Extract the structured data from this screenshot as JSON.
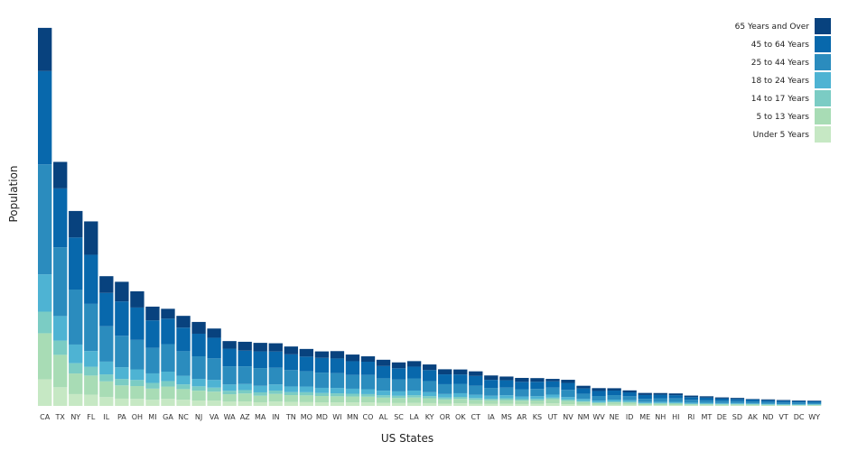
{
  "chart_data": {
    "type": "bar",
    "stacked": true,
    "title": "",
    "xlabel": "US States",
    "ylabel": "Population",
    "ylim": [
      0,
      39500000
    ],
    "grid": false,
    "legend_position": "top-right",
    "categories": [
      "CA",
      "TX",
      "NY",
      "FL",
      "IL",
      "PA",
      "OH",
      "MI",
      "GA",
      "NC",
      "NJ",
      "VA",
      "WA",
      "AZ",
      "MA",
      "IN",
      "TN",
      "MO",
      "MD",
      "WI",
      "MN",
      "CO",
      "AL",
      "SC",
      "LA",
      "KY",
      "OR",
      "OK",
      "CT",
      "IA",
      "MS",
      "AR",
      "KS",
      "UT",
      "NV",
      "NM",
      "WV",
      "NE",
      "ID",
      "ME",
      "NH",
      "HI",
      "RI",
      "MT",
      "DE",
      "SD",
      "AK",
      "ND",
      "VT",
      "DC",
      "WY"
    ],
    "series": [
      {
        "name": "Under 5 Years",
        "color": "#c6e8c4",
        "values": [
          2700000,
          1900000,
          1200000,
          1140000,
          900000,
          740000,
          720000,
          620000,
          720000,
          630000,
          550000,
          530000,
          430000,
          460000,
          370000,
          440000,
          400000,
          380000,
          360000,
          350000,
          350000,
          350000,
          300000,
          290000,
          310000,
          280000,
          230000,
          260000,
          200000,
          200000,
          210000,
          190000,
          200000,
          260000,
          180000,
          140000,
          100000,
          130000,
          120000,
          70000,
          70000,
          90000,
          60000,
          60000,
          55000,
          60000,
          55000,
          45000,
          32000,
          36000,
          38000
        ]
      },
      {
        "name": "5 to 13 Years",
        "color": "#a8dcb5",
        "values": [
          4700000,
          3300000,
          2100000,
          1950000,
          1600000,
          1350000,
          1300000,
          1140000,
          1250000,
          1080000,
          1000000,
          920000,
          760000,
          800000,
          670000,
          780000,
          700000,
          690000,
          650000,
          630000,
          610000,
          590000,
          540000,
          510000,
          540000,
          500000,
          430000,
          460000,
          410000,
          370000,
          390000,
          350000,
          350000,
          420000,
          330000,
          260000,
          190000,
          230000,
          210000,
          140000,
          150000,
          140000,
          110000,
          110000,
          100000,
          100000,
          90000,
          70000,
          60000,
          40000,
          65000
        ]
      },
      {
        "name": "14 to 17 Years",
        "color": "#7bccc4",
        "values": [
          2200000,
          1450000,
          1050000,
          900000,
          710000,
          650000,
          620000,
          580000,
          560000,
          480000,
          440000,
          410000,
          350000,
          350000,
          340000,
          340000,
          310000,
          320000,
          300000,
          300000,
          280000,
          260000,
          250000,
          230000,
          240000,
          220000,
          190000,
          200000,
          190000,
          160000,
          180000,
          150000,
          160000,
          160000,
          140000,
          110000,
          80000,
          90000,
          90000,
          70000,
          70000,
          60000,
          50000,
          50000,
          45000,
          45000,
          40000,
          30000,
          28000,
          20000,
          30000
        ]
      },
      {
        "name": "18 to 24 Years",
        "color": "#4eb3d3",
        "values": [
          3800000,
          2500000,
          1900000,
          1600000,
          1300000,
          1200000,
          1080000,
          970000,
          960000,
          880000,
          760000,
          780000,
          640000,
          620000,
          670000,
          630000,
          570000,
          580000,
          530000,
          550000,
          510000,
          500000,
          460000,
          450000,
          470000,
          400000,
          360000,
          370000,
          330000,
          310000,
          310000,
          270000,
          280000,
          310000,
          250000,
          200000,
          170000,
          190000,
          160000,
          110000,
          130000,
          120000,
          110000,
          100000,
          85000,
          80000,
          70000,
          80000,
          60000,
          70000,
          55000
        ]
      },
      {
        "name": "25 to 44 Years",
        "color": "#2b8cbe",
        "values": [
          11200000,
          7000000,
          5600000,
          4800000,
          3600000,
          3200000,
          3000000,
          2600000,
          2800000,
          2500000,
          2300000,
          2200000,
          1850000,
          1800000,
          1800000,
          1700000,
          1670000,
          1550000,
          1550000,
          1500000,
          1400000,
          1450000,
          1260000,
          1200000,
          1240000,
          1130000,
          1000000,
          960000,
          920000,
          790000,
          770000,
          740000,
          740000,
          720000,
          740000,
          520000,
          470000,
          460000,
          400000,
          320000,
          360000,
          350000,
          280000,
          240000,
          230000,
          200000,
          200000,
          170000,
          160000,
          180000,
          140000
        ]
      },
      {
        "name": "45 to 64 Years",
        "color": "#0868ac",
        "values": [
          9500000,
          6000000,
          5300000,
          5000000,
          3400000,
          3500000,
          3300000,
          2800000,
          2600000,
          2400000,
          2300000,
          2100000,
          1800000,
          1600000,
          1700000,
          1650000,
          1600000,
          1500000,
          1500000,
          1500000,
          1400000,
          1350000,
          1250000,
          1150000,
          1200000,
          1120000,
          1000000,
          950000,
          1000000,
          820000,
          750000,
          750000,
          730000,
          630000,
          700000,
          550000,
          510000,
          460000,
          400000,
          400000,
          360000,
          330000,
          280000,
          280000,
          230000,
          220000,
          200000,
          180000,
          180000,
          140000,
          150000
        ]
      },
      {
        "name": "65 Years and Over",
        "color": "#08427e",
        "values": [
          4400000,
          2700000,
          2700000,
          3400000,
          1700000,
          2000000,
          1650000,
          1400000,
          1000000,
          1200000,
          1200000,
          940000,
          770000,
          900000,
          870000,
          840000,
          800000,
          780000,
          660000,
          750000,
          680000,
          550000,
          640000,
          600000,
          560000,
          570000,
          520000,
          510000,
          470000,
          450000,
          380000,
          400000,
          370000,
          250000,
          320000,
          270000,
          290000,
          240000,
          200000,
          210000,
          170000,
          180000,
          160000,
          140000,
          120000,
          110000,
          50000,
          90000,
          80000,
          70000,
          60000
        ]
      }
    ]
  }
}
